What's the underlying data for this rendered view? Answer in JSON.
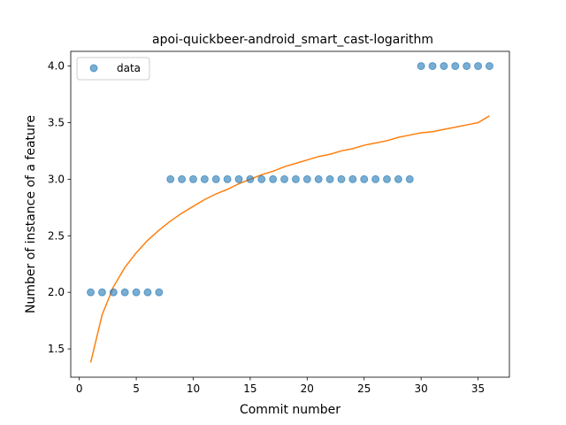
{
  "chart_data": {
    "type": "scatter",
    "title": "apoi-quickbeer-android_smart_cast-logarithm",
    "xlabel": "Commit number",
    "ylabel": "Number of instance of a feature",
    "xlim": [
      -0.75,
      37.75
    ],
    "ylim": [
      1.25,
      4.13
    ],
    "x_ticks": [
      0,
      5,
      10,
      15,
      20,
      25,
      30,
      35
    ],
    "y_ticks": [
      1.5,
      2.0,
      2.5,
      3.0,
      3.5,
      4.0
    ],
    "x_tick_labels": [
      "0",
      "5",
      "10",
      "15",
      "20",
      "25",
      "30",
      "35"
    ],
    "y_tick_labels": [
      "1.5",
      "2.0",
      "2.5",
      "3.0",
      "3.5",
      "4.0"
    ],
    "grid": false,
    "legend": {
      "placement": "upper-left",
      "entries": [
        "data"
      ]
    },
    "colors": {
      "scatter": "#1f77b4",
      "fit": "#ff7f0e"
    },
    "series": [
      {
        "name": "data",
        "kind": "scatter",
        "x": [
          1,
          2,
          3,
          4,
          5,
          6,
          7,
          8,
          9,
          10,
          11,
          12,
          13,
          14,
          15,
          16,
          17,
          18,
          19,
          20,
          21,
          22,
          23,
          24,
          25,
          26,
          27,
          28,
          29,
          30,
          31,
          32,
          33,
          34,
          35,
          36
        ],
        "y": [
          2,
          2,
          2,
          2,
          2,
          2,
          2,
          3,
          3,
          3,
          3,
          3,
          3,
          3,
          3,
          3,
          3,
          3,
          3,
          3,
          3,
          3,
          3,
          3,
          3,
          3,
          3,
          3,
          3,
          4,
          4,
          4,
          4,
          4,
          4,
          4
        ]
      },
      {
        "kind": "line",
        "x": [
          1,
          2,
          3,
          4,
          5,
          6,
          7,
          8,
          9,
          10,
          11,
          12,
          13,
          14,
          15,
          16,
          17,
          18,
          19,
          20,
          21,
          22,
          23,
          24,
          25,
          26,
          27,
          28,
          29,
          30,
          31,
          32,
          33,
          34,
          35,
          36
        ],
        "y": [
          1.38,
          1.8,
          2.05,
          2.22,
          2.35,
          2.46,
          2.55,
          2.63,
          2.7,
          2.76,
          2.82,
          2.87,
          2.91,
          2.96,
          3.0,
          3.04,
          3.07,
          3.11,
          3.14,
          3.17,
          3.2,
          3.22,
          3.25,
          3.27,
          3.3,
          3.32,
          3.34,
          3.37,
          3.39,
          3.41,
          3.42,
          3.44,
          3.46,
          3.48,
          3.5,
          3.56
        ]
      }
    ]
  }
}
